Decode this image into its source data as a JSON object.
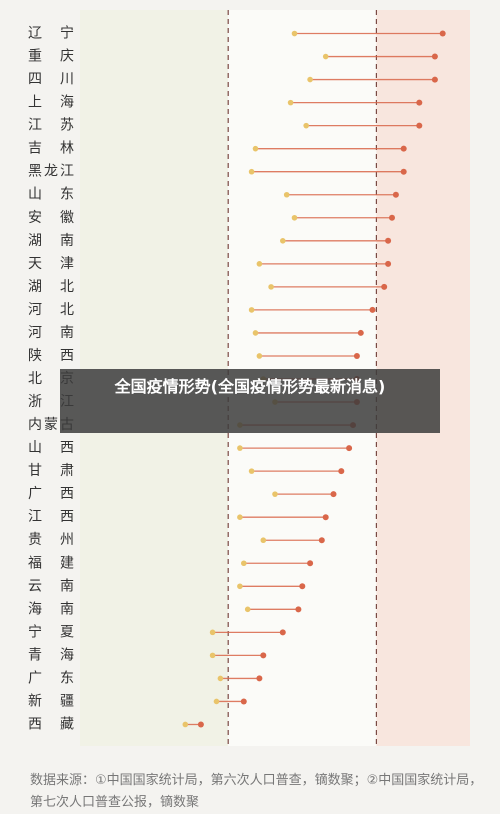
{
  "chart_data": {
    "type": "dumbbell",
    "categories": [
      "辽宁",
      "重庆",
      "四川",
      "上海",
      "江苏",
      "吉林",
      "黑龙江",
      "山东",
      "安徽",
      "湖南",
      "天津",
      "湖北",
      "河北",
      "河南",
      "陕西",
      "北京",
      "浙江",
      "内蒙古",
      "山西",
      "甘肃",
      "广西",
      "江西",
      "贵州",
      "福建",
      "云南",
      "海南",
      "宁夏",
      "青海",
      "广东",
      "新疆",
      "西藏"
    ],
    "series": [
      {
        "color": "#e9c46a",
        "values": [
          55,
          63,
          59,
          54,
          58,
          45,
          44,
          53,
          55,
          52,
          46,
          49,
          44,
          45,
          46,
          47,
          50,
          41,
          41,
          44,
          50,
          41,
          47,
          42,
          41,
          43,
          34,
          34,
          36,
          35,
          27
        ]
      },
      {
        "color": "#d9674a",
        "values": [
          93,
          91,
          91,
          87,
          87,
          83,
          83,
          81,
          80,
          79,
          79,
          78,
          75,
          72,
          71,
          71,
          71,
          70,
          69,
          67,
          65,
          63,
          62,
          59,
          57,
          56,
          52,
          47,
          46,
          42,
          31
        ]
      }
    ],
    "xlim": [
      0,
      100
    ],
    "reference_lines": [
      38,
      76
    ],
    "note": "数据来源：①中国国家统计局，第六次人口普查，镝数聚；②中国国家统计局，第七次人口普查公报，镝数聚",
    "overlay": "全国疫情形势(全国疫情形势最新消息)"
  }
}
